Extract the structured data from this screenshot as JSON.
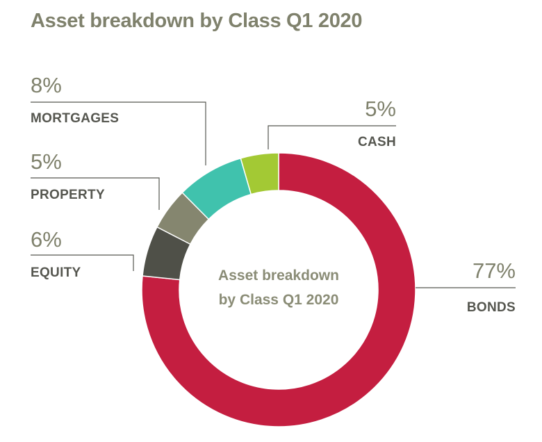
{
  "title": "Asset breakdown by Class Q1 2020",
  "center_text": [
    "Asset breakdown",
    "by Class Q1 2020"
  ],
  "chart_data": {
    "type": "pie",
    "donut": true,
    "title": "Asset breakdown by Class Q1 2020",
    "slices": [
      {
        "label": "BONDS",
        "value": 77,
        "display": "77%",
        "color": "#c41e40"
      },
      {
        "label": "EQUITY",
        "value": 6,
        "display": "6%",
        "color": "#4f5048"
      },
      {
        "label": "PROPERTY",
        "value": 5,
        "display": "5%",
        "color": "#85866f"
      },
      {
        "label": "MORTGAGES",
        "value": 8,
        "display": "8%",
        "color": "#40c2ad"
      },
      {
        "label": "CASH",
        "value": 4.5,
        "display": "5%",
        "color": "#a3c934"
      }
    ],
    "start": "top",
    "direction": "clockwise"
  }
}
